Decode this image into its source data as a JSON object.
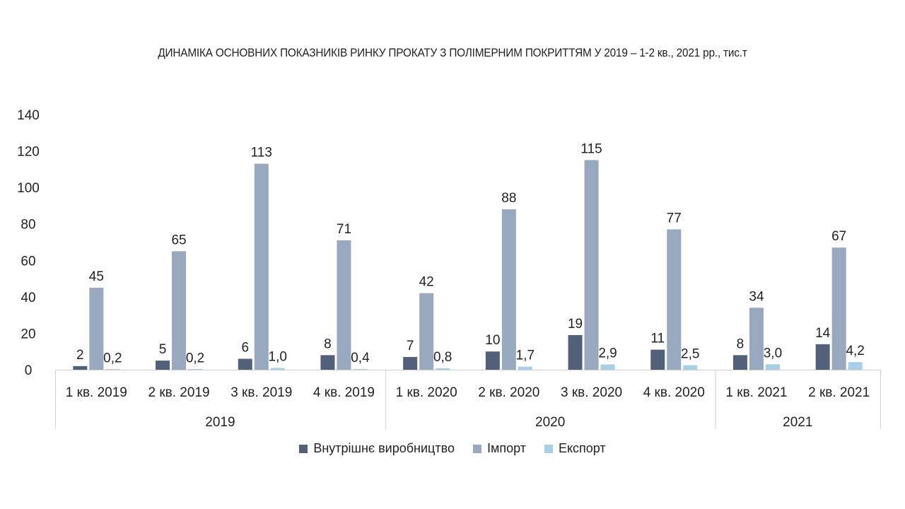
{
  "chart_data": {
    "type": "bar",
    "title": "ДИНАМІКА ОСНОВНИХ ПОКАЗНИКІВ РИНКУ ПРОКАТУ З ПОЛІМЕРНИМ ПОКРИТТЯМ У 2019 – 1-2 кв., 2021 рр., тис.т",
    "categories": [
      "1 кв. 2019",
      "2 кв. 2019",
      "3 кв. 2019",
      "4 кв. 2019",
      "1 кв. 2020",
      "2 кв. 2020",
      "3 кв. 2020",
      "4 кв. 2020",
      "1 кв. 2021",
      "2 кв. 2021"
    ],
    "groups": [
      {
        "label": "2019",
        "count": 4
      },
      {
        "label": "2020",
        "count": 4
      },
      {
        "label": "2021",
        "count": 2
      }
    ],
    "series": [
      {
        "name": "Внутрішнє виробництво",
        "color": "#536079",
        "values": [
          2,
          5,
          6,
          8,
          7,
          10,
          19,
          11,
          8,
          14
        ],
        "labels": [
          "2",
          "5",
          "6",
          "8",
          "7",
          "10",
          "19",
          "11",
          "8",
          "14"
        ]
      },
      {
        "name": "Імпорт",
        "color": "#97a8bf",
        "values": [
          45,
          65,
          113,
          71,
          42,
          88,
          115,
          77,
          34,
          67
        ],
        "labels": [
          "45",
          "65",
          "113",
          "71",
          "42",
          "88",
          "115",
          "77",
          "34",
          "67"
        ]
      },
      {
        "name": "Експорт",
        "color": "#a9cfe6",
        "values": [
          0.2,
          0.2,
          1.0,
          0.4,
          0.8,
          1.7,
          2.9,
          2.5,
          3.0,
          4.2
        ],
        "labels": [
          "0,2",
          "0,2",
          "1,0",
          "0,4",
          "0,8",
          "1,7",
          "2,9",
          "2,5",
          "3,0",
          "4,2"
        ]
      }
    ],
    "yticks": [
      0,
      20,
      40,
      60,
      80,
      100,
      120,
      140
    ],
    "ylim": [
      0,
      140
    ],
    "grid": false,
    "legend_position": "bottom"
  }
}
